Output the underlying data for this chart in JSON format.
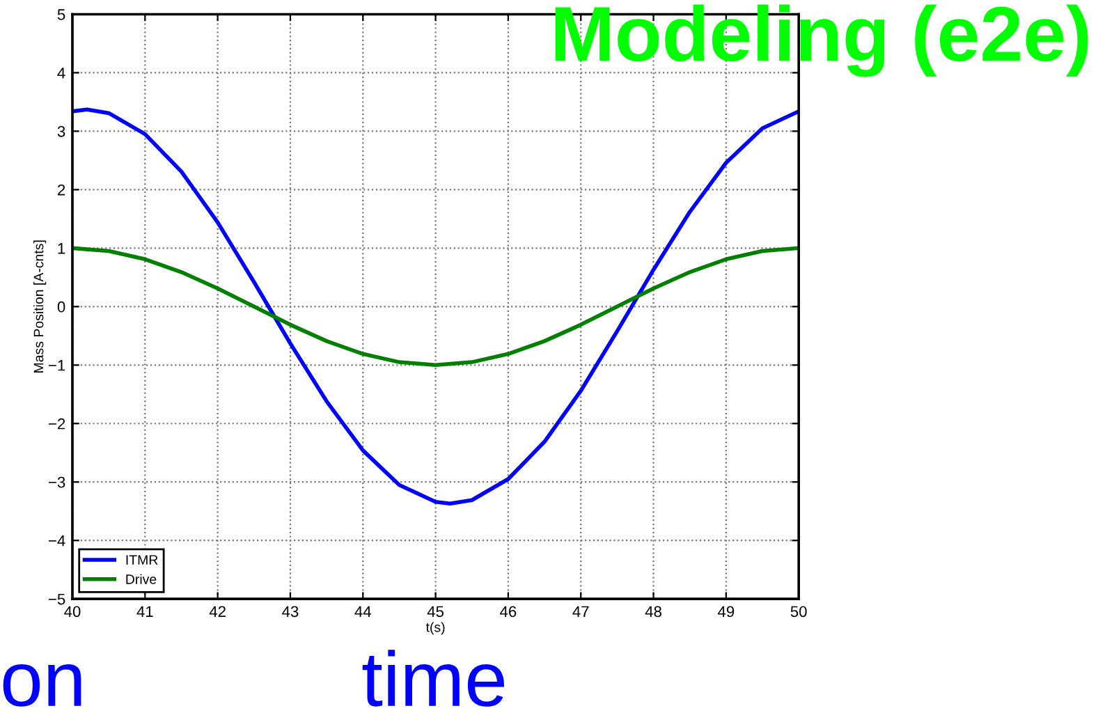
{
  "chart_data": {
    "type": "line",
    "xlabel": "t(s)",
    "ylabel": "Mass Position [A-cnts]",
    "xlim": [
      40,
      50
    ],
    "ylim": [
      -5,
      5
    ],
    "xticks": [
      40,
      41,
      42,
      43,
      44,
      45,
      46,
      47,
      48,
      49,
      50
    ],
    "yticks": [
      -5,
      -4,
      -3,
      -2,
      -1,
      0,
      1,
      2,
      3,
      4,
      5
    ],
    "grid": true,
    "legend": "bottom left",
    "line_style": "solid",
    "marker": "none",
    "series": [
      {
        "name": "ITMR",
        "color": "#0000ff",
        "x": [
          40,
          40.2,
          40.5,
          41,
          41.5,
          42,
          42.5,
          43,
          43.5,
          44,
          44.5,
          45,
          45.2,
          45.5,
          46,
          46.5,
          47,
          47.5,
          48,
          48.5,
          49,
          49.5,
          50
        ],
        "values": [
          3.34,
          3.37,
          3.31,
          2.95,
          2.31,
          1.44,
          0.42,
          -0.63,
          -1.62,
          -2.46,
          -3.05,
          -3.34,
          -3.37,
          -3.31,
          -2.95,
          -2.31,
          -1.44,
          -0.42,
          0.63,
          1.62,
          2.46,
          3.05,
          3.34
        ]
      },
      {
        "name": "Drive",
        "color": "#007f00",
        "x": [
          40,
          40.5,
          41,
          41.5,
          42,
          42.5,
          43,
          43.5,
          44,
          44.5,
          45,
          45.5,
          46,
          46.5,
          47,
          47.5,
          48,
          48.5,
          49,
          49.5,
          50
        ],
        "values": [
          1,
          0.95,
          0.81,
          0.59,
          0.31,
          0,
          -0.31,
          -0.59,
          -0.81,
          -0.95,
          -1,
          -0.95,
          -0.81,
          -0.59,
          -0.31,
          0,
          0.31,
          0.59,
          0.81,
          0.95,
          1
        ]
      }
    ],
    "annotations": [
      "Modeling (e2e)",
      "time",
      "on"
    ]
  }
}
